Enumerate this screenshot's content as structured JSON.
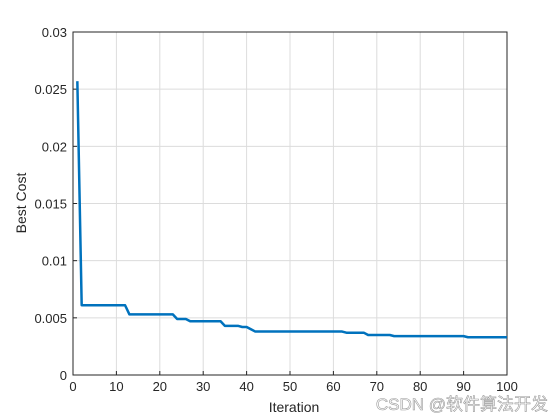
{
  "chart_data": {
    "type": "line",
    "xlabel": "Iteration",
    "ylabel": "Best Cost",
    "x": [
      1,
      2,
      3,
      4,
      5,
      6,
      7,
      8,
      9,
      10,
      11,
      12,
      13,
      14,
      15,
      16,
      17,
      18,
      19,
      20,
      21,
      22,
      23,
      24,
      25,
      26,
      27,
      28,
      29,
      30,
      31,
      32,
      33,
      34,
      35,
      36,
      37,
      38,
      39,
      40,
      41,
      42,
      43,
      44,
      45,
      46,
      47,
      48,
      49,
      50,
      51,
      52,
      53,
      54,
      55,
      56,
      57,
      58,
      59,
      60,
      61,
      62,
      63,
      64,
      65,
      66,
      67,
      68,
      69,
      70,
      71,
      72,
      73,
      74,
      75,
      76,
      77,
      78,
      79,
      80,
      81,
      82,
      83,
      84,
      85,
      86,
      87,
      88,
      89,
      90,
      91,
      92,
      93,
      94,
      95,
      96,
      97,
      98,
      99,
      100
    ],
    "values": [
      0.0257,
      0.0061,
      0.0061,
      0.0061,
      0.0061,
      0.0061,
      0.0061,
      0.0061,
      0.0061,
      0.0061,
      0.0061,
      0.0061,
      0.0053,
      0.0053,
      0.0053,
      0.0053,
      0.0053,
      0.0053,
      0.0053,
      0.0053,
      0.0053,
      0.0053,
      0.0053,
      0.0049,
      0.0049,
      0.0049,
      0.0047,
      0.0047,
      0.0047,
      0.0047,
      0.0047,
      0.0047,
      0.0047,
      0.0047,
      0.0043,
      0.0043,
      0.0043,
      0.0043,
      0.0042,
      0.0042,
      0.004,
      0.0038,
      0.0038,
      0.0038,
      0.0038,
      0.0038,
      0.0038,
      0.0038,
      0.0038,
      0.0038,
      0.0038,
      0.0038,
      0.0038,
      0.0038,
      0.0038,
      0.0038,
      0.0038,
      0.0038,
      0.0038,
      0.0038,
      0.0038,
      0.0038,
      0.0037,
      0.0037,
      0.0037,
      0.0037,
      0.0037,
      0.0035,
      0.0035,
      0.0035,
      0.0035,
      0.0035,
      0.0035,
      0.0034,
      0.0034,
      0.0034,
      0.0034,
      0.0034,
      0.0034,
      0.0034,
      0.0034,
      0.0034,
      0.0034,
      0.0034,
      0.0034,
      0.0034,
      0.0034,
      0.0034,
      0.0034,
      0.0034,
      0.0033,
      0.0033,
      0.0033,
      0.0033,
      0.0033,
      0.0033,
      0.0033,
      0.0033,
      0.0033,
      0.0033
    ],
    "color": "#0072bd",
    "xlim": [
      0,
      100
    ],
    "xticks": [
      0,
      10,
      20,
      30,
      40,
      50,
      60,
      70,
      80,
      90,
      100
    ],
    "ylim": [
      0,
      0.03
    ],
    "yticks": [
      0,
      0.005,
      0.01,
      0.015,
      0.02,
      0.025,
      0.03
    ],
    "grid": true
  },
  "watermark": "CSDN @软件算法开发"
}
